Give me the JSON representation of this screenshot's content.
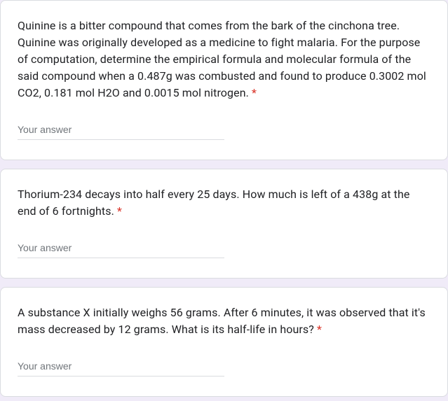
{
  "form": {
    "required_marker": "*",
    "answer_placeholder": "Your answer",
    "colors": {
      "page_bg": "#f0ebf8",
      "card_bg": "#ffffff",
      "card_border": "#dadce0",
      "text": "#202124",
      "placeholder": "#70757a",
      "required": "#d93025",
      "input_underline": "#dadce0"
    },
    "questions": [
      {
        "text": "Quinine is a bitter compound that comes from the bark of the cinchona tree. Quinine was originally developed as a medicine to fight malaria. For the purpose of computation, determine the empirical formula and molecular formula of the said compound when a 0.487g was combusted and found to produce 0.3002 mol CO2, 0.181 mol H2O and 0.0015 mol nitrogen."
      },
      {
        "text": "Thorium-234 decays into half every 25 days. How much is left of a 438g at the end of 6 fortnights."
      },
      {
        "text": "A substance X initially weighs 56 grams. After 6 minutes, it was observed that it's mass decreased by 12 grams. What is its half-life in hours?"
      }
    ]
  }
}
